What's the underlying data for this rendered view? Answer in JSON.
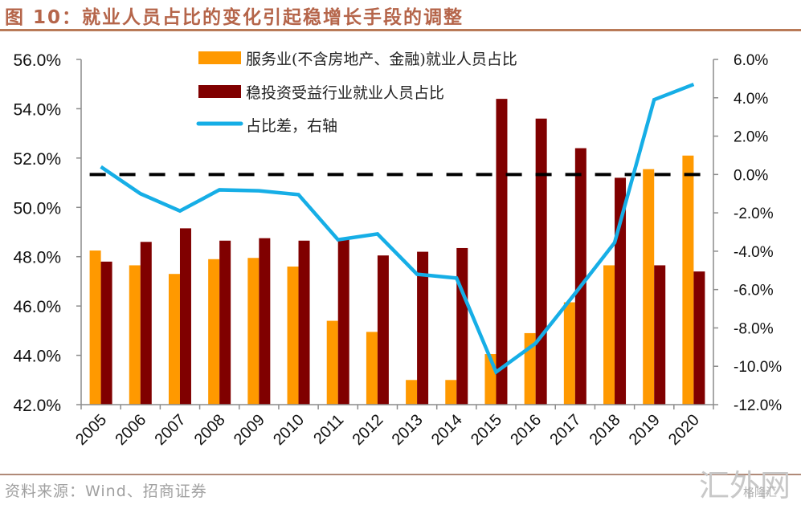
{
  "header": {
    "title": "图 10：就业人员占比的变化引起稳增长手段的调整"
  },
  "footer": {
    "source": "资料来源：Wind、招商证券",
    "watermark": "汇外网",
    "watermark_small": "格隆汇"
  },
  "chart_data": {
    "type": "bar+line",
    "title": "就业人员占比的变化引起稳增长手段的调整",
    "categories": [
      "2005",
      "2006",
      "2007",
      "2008",
      "2009",
      "2010",
      "2011",
      "2012",
      "2013",
      "2014",
      "2015",
      "2016",
      "2017",
      "2018",
      "2019",
      "2020"
    ],
    "series": [
      {
        "name": "服务业(不含房地产、金融)就业人员占比",
        "type": "bar",
        "axis": "left",
        "color": "#ff9900",
        "values": [
          48.25,
          47.65,
          47.3,
          47.9,
          47.95,
          47.6,
          45.4,
          44.95,
          43.0,
          43.0,
          44.05,
          44.9,
          46.15,
          47.65,
          51.55,
          52.1
        ]
      },
      {
        "name": "稳投资受益行业就业人员占比",
        "type": "bar",
        "axis": "left",
        "color": "#800000",
        "values": [
          47.8,
          48.6,
          49.15,
          48.65,
          48.75,
          48.65,
          48.7,
          48.05,
          48.2,
          48.35,
          54.4,
          53.6,
          52.4,
          51.2,
          47.65,
          47.4
        ]
      },
      {
        "name": "占比差，右轴",
        "type": "line",
        "axis": "right",
        "color": "#16aee6",
        "values": [
          0.4,
          -1.0,
          -1.9,
          -0.8,
          -0.85,
          -1.05,
          -3.4,
          -3.1,
          -5.2,
          -5.4,
          -10.3,
          -8.8,
          -6.2,
          -3.55,
          3.9,
          4.7
        ]
      }
    ],
    "reference_line": {
      "axis": "right",
      "value": 0.0,
      "style": "dashed",
      "color": "#000000"
    },
    "left_axis": {
      "ylim": [
        42.0,
        56.0
      ],
      "ticks": [
        56.0,
        54.0,
        52.0,
        50.0,
        48.0,
        46.0,
        44.0,
        42.0
      ],
      "tick_labels": [
        "56.0%",
        "54.0%",
        "52.0%",
        "50.0%",
        "48.0%",
        "46.0%",
        "44.0%",
        "42.0%"
      ]
    },
    "right_axis": {
      "ylim": [
        -12.0,
        6.0
      ],
      "ticks": [
        6.0,
        4.0,
        2.0,
        0.0,
        -2.0,
        -4.0,
        -6.0,
        -8.0,
        -10.0,
        -12.0
      ],
      "tick_labels": [
        "6.0%",
        "4.0%",
        "2.0%",
        "0.0%",
        "-2.0%",
        "-4.0%",
        "-6.0%",
        "-8.0%",
        "-10.0%",
        "-12.0%"
      ]
    },
    "xlabel": "",
    "ylabel": "",
    "grid": false,
    "legend": {
      "placement": "top-center",
      "entries": [
        "服务业(不含房地产、金融)就业人员占比",
        "稳投资受益行业就业人员占比",
        "占比差，右轴"
      ]
    }
  }
}
